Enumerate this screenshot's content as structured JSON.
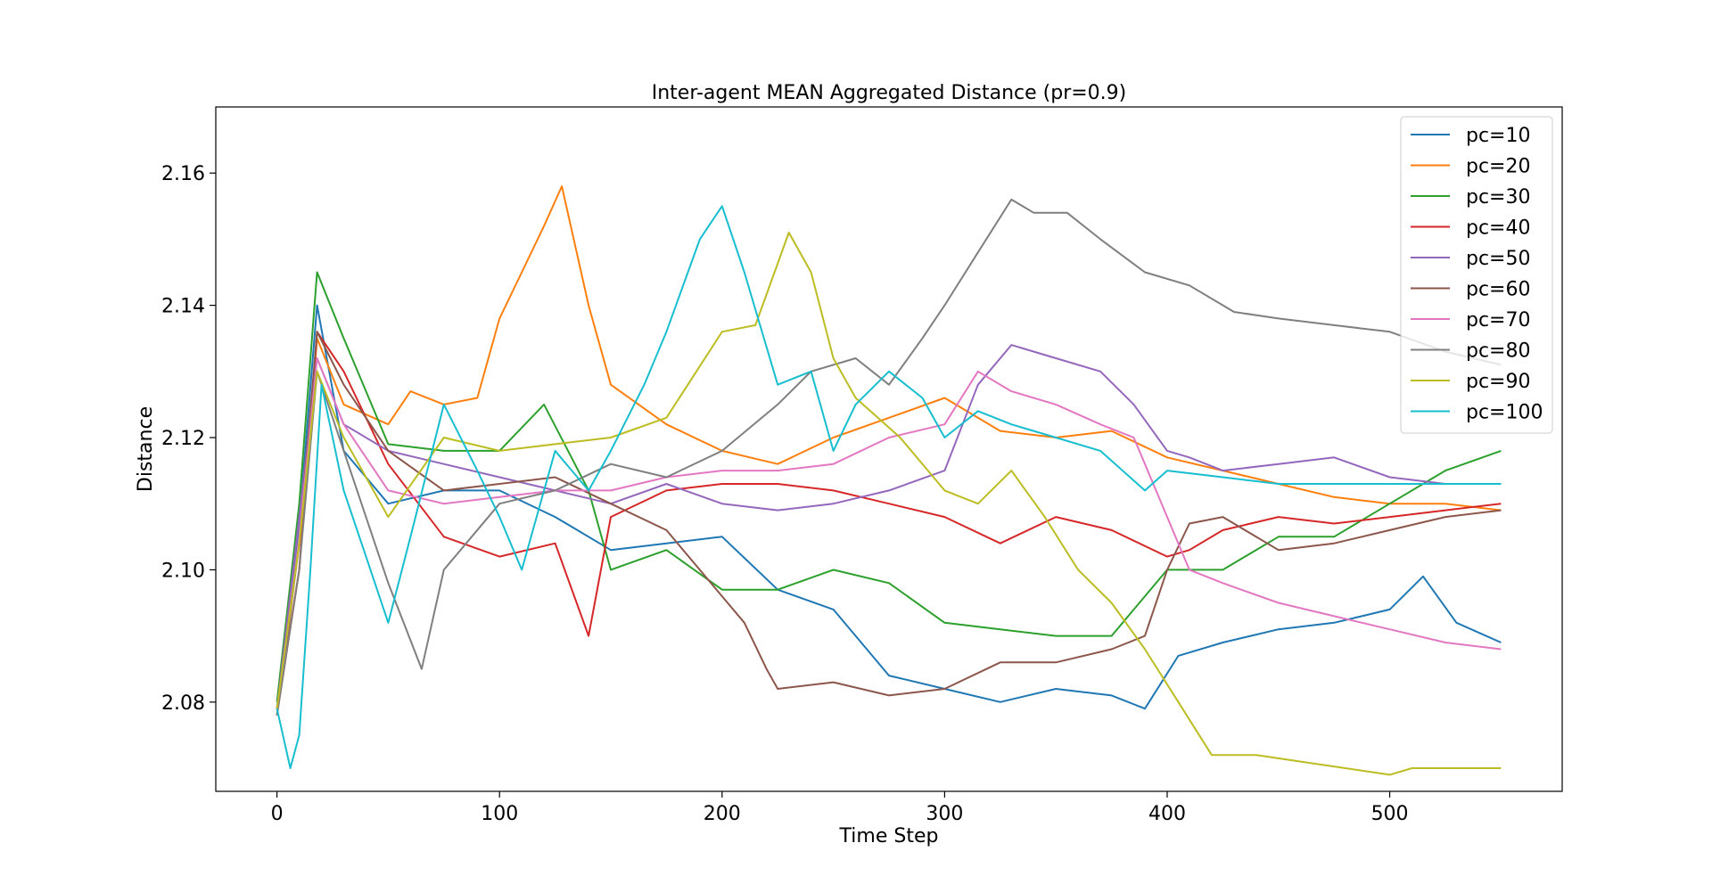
{
  "chart_data": {
    "type": "line",
    "title": "Inter-agent MEAN Aggregated Distance (pr=0.9)",
    "xlabel": "Time Step",
    "ylabel": "Distance",
    "xlim": [
      -27.5,
      577.5
    ],
    "ylim": [
      2.0665,
      2.17
    ],
    "xticks": [
      0,
      100,
      200,
      300,
      400,
      500
    ],
    "yticks": [
      2.08,
      2.1,
      2.12,
      2.14,
      2.16
    ],
    "ytick_labels": [
      "2.08",
      "2.10",
      "2.12",
      "2.14",
      "2.16"
    ],
    "grid": false,
    "legend_position": "top-right",
    "series": [
      {
        "name": "pc=10",
        "color": "#1f77b4",
        "x": [
          0,
          10,
          18,
          30,
          50,
          75,
          100,
          125,
          150,
          175,
          200,
          225,
          250,
          275,
          300,
          325,
          350,
          375,
          390,
          405,
          425,
          450,
          475,
          500,
          515,
          530,
          550
        ],
        "y": [
          2.079,
          2.107,
          2.14,
          2.118,
          2.11,
          2.112,
          2.112,
          2.108,
          2.103,
          2.104,
          2.105,
          2.097,
          2.094,
          2.084,
          2.082,
          2.08,
          2.082,
          2.081,
          2.079,
          2.087,
          2.089,
          2.091,
          2.092,
          2.094,
          2.099,
          2.092,
          2.089
        ]
      },
      {
        "name": "pc=20",
        "color": "#ff7f0e",
        "x": [
          0,
          10,
          18,
          30,
          50,
          60,
          75,
          90,
          100,
          110,
          120,
          128,
          140,
          150,
          175,
          200,
          225,
          250,
          275,
          300,
          325,
          350,
          375,
          400,
          425,
          450,
          475,
          500,
          525,
          550
        ],
        "y": [
          2.079,
          2.1,
          2.135,
          2.125,
          2.122,
          2.127,
          2.125,
          2.126,
          2.138,
          2.145,
          2.152,
          2.158,
          2.14,
          2.128,
          2.122,
          2.118,
          2.116,
          2.12,
          2.123,
          2.126,
          2.121,
          2.12,
          2.121,
          2.117,
          2.115,
          2.113,
          2.111,
          2.11,
          2.11,
          2.109
        ]
      },
      {
        "name": "pc=30",
        "color": "#2ca02c",
        "x": [
          0,
          10,
          18,
          30,
          50,
          75,
          100,
          120,
          140,
          150,
          175,
          200,
          225,
          250,
          275,
          300,
          325,
          350,
          375,
          390,
          400,
          425,
          450,
          475,
          500,
          525,
          550
        ],
        "y": [
          2.08,
          2.11,
          2.145,
          2.135,
          2.119,
          2.118,
          2.118,
          2.125,
          2.112,
          2.1,
          2.103,
          2.097,
          2.097,
          2.1,
          2.098,
          2.092,
          2.091,
          2.09,
          2.09,
          2.096,
          2.1,
          2.1,
          2.105,
          2.105,
          2.11,
          2.115,
          2.118
        ]
      },
      {
        "name": "pc=40",
        "color": "#d62728",
        "x": [
          0,
          10,
          18,
          30,
          50,
          75,
          100,
          125,
          140,
          150,
          175,
          200,
          225,
          250,
          275,
          300,
          325,
          350,
          375,
          400,
          410,
          425,
          450,
          475,
          500,
          525,
          550
        ],
        "y": [
          2.078,
          2.1,
          2.136,
          2.13,
          2.116,
          2.105,
          2.102,
          2.104,
          2.09,
          2.108,
          2.112,
          2.113,
          2.113,
          2.112,
          2.11,
          2.108,
          2.104,
          2.108,
          2.106,
          2.102,
          2.103,
          2.106,
          2.108,
          2.107,
          2.108,
          2.109,
          2.11
        ]
      },
      {
        "name": "pc=50",
        "color": "#9467bd",
        "x": [
          0,
          10,
          18,
          30,
          50,
          75,
          100,
          125,
          150,
          175,
          200,
          225,
          250,
          275,
          300,
          315,
          330,
          350,
          370,
          385,
          400,
          410,
          425,
          450,
          475,
          500,
          525,
          550
        ],
        "y": [
          2.079,
          2.108,
          2.132,
          2.122,
          2.118,
          2.116,
          2.114,
          2.112,
          2.11,
          2.113,
          2.11,
          2.109,
          2.11,
          2.112,
          2.115,
          2.128,
          2.134,
          2.132,
          2.13,
          2.125,
          2.118,
          2.117,
          2.115,
          2.116,
          2.117,
          2.114,
          2.113,
          2.113
        ]
      },
      {
        "name": "pc=60",
        "color": "#8c564b",
        "x": [
          0,
          10,
          18,
          30,
          50,
          75,
          100,
          125,
          150,
          175,
          200,
          210,
          220,
          225,
          250,
          275,
          300,
          325,
          350,
          375,
          390,
          400,
          410,
          425,
          450,
          475,
          500,
          525,
          550
        ],
        "y": [
          2.078,
          2.104,
          2.136,
          2.128,
          2.118,
          2.112,
          2.113,
          2.114,
          2.11,
          2.106,
          2.096,
          2.092,
          2.085,
          2.082,
          2.083,
          2.081,
          2.082,
          2.086,
          2.086,
          2.088,
          2.09,
          2.1,
          2.107,
          2.108,
          2.103,
          2.104,
          2.106,
          2.108,
          2.109
        ]
      },
      {
        "name": "pc=70",
        "color": "#e377c2",
        "x": [
          0,
          10,
          18,
          30,
          50,
          75,
          100,
          125,
          150,
          175,
          200,
          225,
          250,
          275,
          300,
          315,
          330,
          350,
          370,
          385,
          400,
          410,
          425,
          450,
          475,
          500,
          525,
          550
        ],
        "y": [
          2.078,
          2.105,
          2.132,
          2.122,
          2.112,
          2.11,
          2.111,
          2.112,
          2.112,
          2.114,
          2.115,
          2.115,
          2.116,
          2.12,
          2.122,
          2.13,
          2.127,
          2.125,
          2.122,
          2.12,
          2.108,
          2.1,
          2.098,
          2.095,
          2.093,
          2.091,
          2.089,
          2.088
        ]
      },
      {
        "name": "pc=80",
        "color": "#7f7f7f",
        "x": [
          0,
          10,
          18,
          30,
          50,
          65,
          75,
          100,
          125,
          150,
          175,
          200,
          225,
          240,
          260,
          275,
          290,
          300,
          315,
          330,
          340,
          355,
          370,
          390,
          410,
          430,
          450,
          475,
          500,
          525,
          550
        ],
        "y": [
          2.078,
          2.1,
          2.13,
          2.118,
          2.098,
          2.085,
          2.1,
          2.11,
          2.112,
          2.116,
          2.114,
          2.118,
          2.125,
          2.13,
          2.132,
          2.128,
          2.135,
          2.14,
          2.148,
          2.156,
          2.154,
          2.154,
          2.15,
          2.145,
          2.143,
          2.139,
          2.138,
          2.137,
          2.136,
          2.133,
          2.131
        ]
      },
      {
        "name": "pc=90",
        "color": "#bcbd22",
        "x": [
          0,
          10,
          18,
          30,
          50,
          75,
          100,
          125,
          150,
          175,
          200,
          215,
          230,
          240,
          250,
          260,
          280,
          300,
          315,
          330,
          345,
          360,
          375,
          390,
          405,
          420,
          440,
          460,
          480,
          500,
          510,
          525,
          550
        ],
        "y": [
          2.079,
          2.104,
          2.13,
          2.12,
          2.108,
          2.12,
          2.118,
          2.119,
          2.12,
          2.123,
          2.136,
          2.137,
          2.151,
          2.145,
          2.132,
          2.126,
          2.12,
          2.112,
          2.11,
          2.115,
          2.108,
          2.1,
          2.095,
          2.088,
          2.08,
          2.072,
          2.072,
          2.071,
          2.07,
          2.069,
          2.07,
          2.07,
          2.07
        ]
      },
      {
        "name": "pc=100",
        "color": "#17becf",
        "x": [
          0,
          6,
          10,
          15,
          20,
          30,
          40,
          50,
          60,
          75,
          90,
          100,
          110,
          125,
          140,
          150,
          165,
          175,
          190,
          200,
          210,
          225,
          240,
          250,
          260,
          275,
          290,
          300,
          315,
          330,
          350,
          370,
          390,
          400,
          425,
          450,
          475,
          500,
          525,
          550
        ],
        "y": [
          2.079,
          2.07,
          2.075,
          2.1,
          2.128,
          2.112,
          2.102,
          2.092,
          2.105,
          2.125,
          2.115,
          2.108,
          2.1,
          2.118,
          2.112,
          2.118,
          2.128,
          2.136,
          2.15,
          2.155,
          2.145,
          2.128,
          2.13,
          2.118,
          2.125,
          2.13,
          2.126,
          2.12,
          2.124,
          2.122,
          2.12,
          2.118,
          2.112,
          2.115,
          2.114,
          2.113,
          2.113,
          2.113,
          2.113,
          2.113
        ]
      }
    ]
  }
}
